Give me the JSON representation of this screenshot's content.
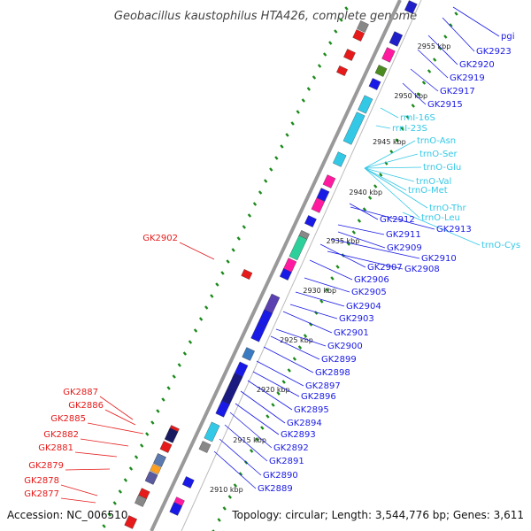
{
  "title": "Geobacillus kaustophilus HTA426, complete genome",
  "footer": {
    "accession": "Accession: NC_006510",
    "topology": "Topology: circular; Length: 3,544,776 bp; Genes: 3,611"
  },
  "colors": {
    "forward": "#1a1ae6",
    "reverse": "#e61a1a",
    "rna": "#33c8e6",
    "backbone": "#999999",
    "ticks": "#1a8a1a"
  },
  "kbp_marks": [
    "2955 kbp",
    "2950 kbp",
    "2945 kbp",
    "2940 kbp",
    "2935 kbp",
    "2930 kbp",
    "2925 kbp",
    "2920 kbp",
    "2915 kbp",
    "2910 kbp"
  ],
  "labels_right": [
    {
      "text": "pgi",
      "kind": "forward"
    },
    {
      "text": "GK2923",
      "kind": "forward"
    },
    {
      "text": "GK2920",
      "kind": "forward"
    },
    {
      "text": "GK2919",
      "kind": "forward"
    },
    {
      "text": "GK2917",
      "kind": "forward"
    },
    {
      "text": "GK2915",
      "kind": "forward"
    },
    {
      "text": "rrnI-16S",
      "kind": "rna"
    },
    {
      "text": "rrnI-23S",
      "kind": "rna"
    },
    {
      "text": "trnO-Asn",
      "kind": "rna"
    },
    {
      "text": "trnO-Ser",
      "kind": "rna"
    },
    {
      "text": "trnO-Glu",
      "kind": "rna"
    },
    {
      "text": "trnO-Val",
      "kind": "rna"
    },
    {
      "text": "trnO-Met",
      "kind": "rna"
    },
    {
      "text": "trnO-Thr",
      "kind": "rna"
    },
    {
      "text": "trnO-Leu",
      "kind": "rna"
    },
    {
      "text": "trnO-Cys",
      "kind": "rna"
    },
    {
      "text": "GK2912",
      "kind": "forward"
    },
    {
      "text": "GK2913",
      "kind": "forward"
    },
    {
      "text": "GK2911",
      "kind": "forward"
    },
    {
      "text": "GK2909",
      "kind": "forward"
    },
    {
      "text": "GK2910",
      "kind": "forward"
    },
    {
      "text": "GK2907",
      "kind": "forward"
    },
    {
      "text": "GK2908",
      "kind": "forward"
    },
    {
      "text": "GK2906",
      "kind": "forward"
    },
    {
      "text": "GK2905",
      "kind": "forward"
    },
    {
      "text": "GK2904",
      "kind": "forward"
    },
    {
      "text": "GK2903",
      "kind": "forward"
    },
    {
      "text": "GK2901",
      "kind": "forward"
    },
    {
      "text": "GK2900",
      "kind": "forward"
    },
    {
      "text": "GK2899",
      "kind": "forward"
    },
    {
      "text": "GK2898",
      "kind": "forward"
    },
    {
      "text": "GK2897",
      "kind": "forward"
    },
    {
      "text": "GK2896",
      "kind": "forward"
    },
    {
      "text": "GK2895",
      "kind": "forward"
    },
    {
      "text": "GK2894",
      "kind": "forward"
    },
    {
      "text": "GK2893",
      "kind": "forward"
    },
    {
      "text": "GK2892",
      "kind": "forward"
    },
    {
      "text": "GK2891",
      "kind": "forward"
    },
    {
      "text": "GK2890",
      "kind": "forward"
    },
    {
      "text": "GK2889",
      "kind": "forward"
    }
  ],
  "labels_left": [
    {
      "text": "GK2902",
      "kind": "reverse"
    },
    {
      "text": "GK2887",
      "kind": "reverse"
    },
    {
      "text": "GK2886",
      "kind": "reverse"
    },
    {
      "text": "GK2885",
      "kind": "reverse"
    },
    {
      "text": "GK2882",
      "kind": "reverse"
    },
    {
      "text": "GK2881",
      "kind": "reverse"
    },
    {
      "text": "GK2879",
      "kind": "reverse"
    },
    {
      "text": "GK2878",
      "kind": "reverse"
    },
    {
      "text": "GK2877",
      "kind": "reverse"
    }
  ]
}
